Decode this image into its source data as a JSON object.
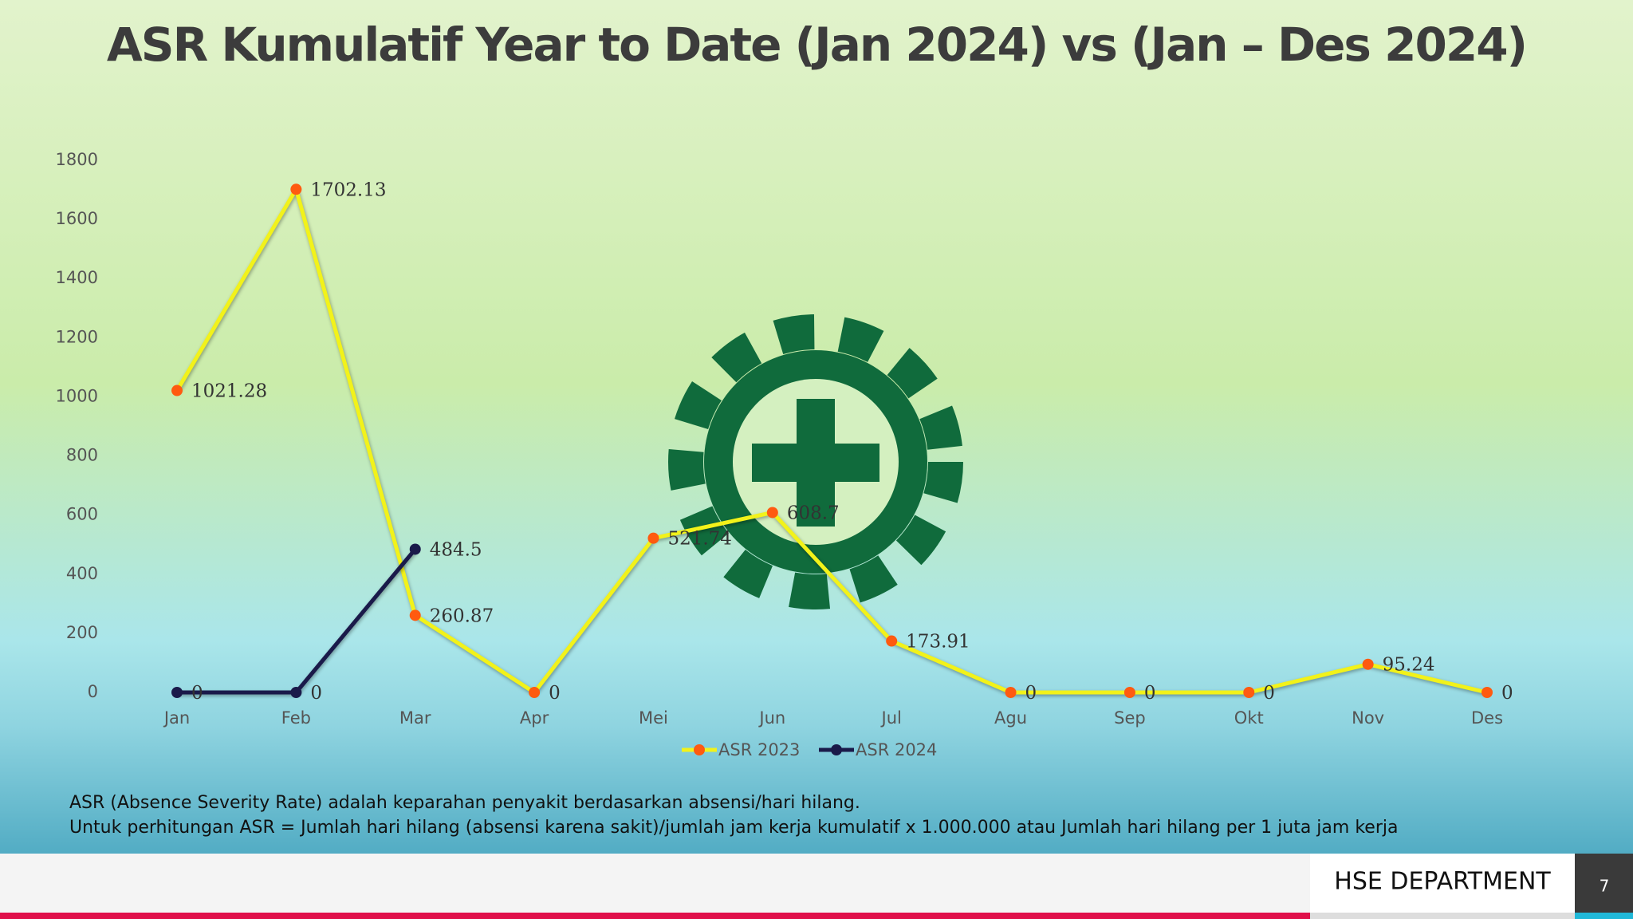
{
  "chart_data": {
    "type": "line",
    "title": "ASR Kumulatif Year to Date (Jan 2024) vs (Jan – Des 2024)",
    "categories": [
      "Jan",
      "Feb",
      "Mar",
      "Apr",
      "Mei",
      "Jun",
      "Jul",
      "Agu",
      "Sep",
      "Okt",
      "Nov",
      "Des"
    ],
    "series": [
      {
        "name": "ASR 2023",
        "color": "#f2f21a",
        "marker_color": "#ff5a10",
        "values": [
          1021.28,
          1702.13,
          260.87,
          0,
          521.74,
          608.7,
          173.91,
          0,
          0,
          0,
          95.24,
          0
        ]
      },
      {
        "name": "ASR 2024",
        "color": "#1a1a4a",
        "marker_color": "#1a1a4a",
        "values": [
          0,
          0,
          484.5,
          null,
          null,
          null,
          null,
          null,
          null,
          null,
          null,
          null
        ]
      }
    ],
    "ylim": [
      0,
      1800
    ],
    "yticks": [
      0,
      200,
      400,
      600,
      800,
      1000,
      1200,
      1400,
      1600,
      1800
    ],
    "grid": false,
    "legend": "bottom",
    "notes": [
      "ASR (Absence Severity Rate) adalah keparahan penyakit berdasarkan absensi/hari hilang.",
      "Untuk perhitungan ASR = Jumlah hari hilang (absensi karena sakit)/jumlah jam kerja kumulatif x 1.000.000 atau Jumlah hari hilang per 1 juta jam kerja"
    ]
  },
  "footer": {
    "department": "HSE DEPARTMENT",
    "page": 7
  }
}
